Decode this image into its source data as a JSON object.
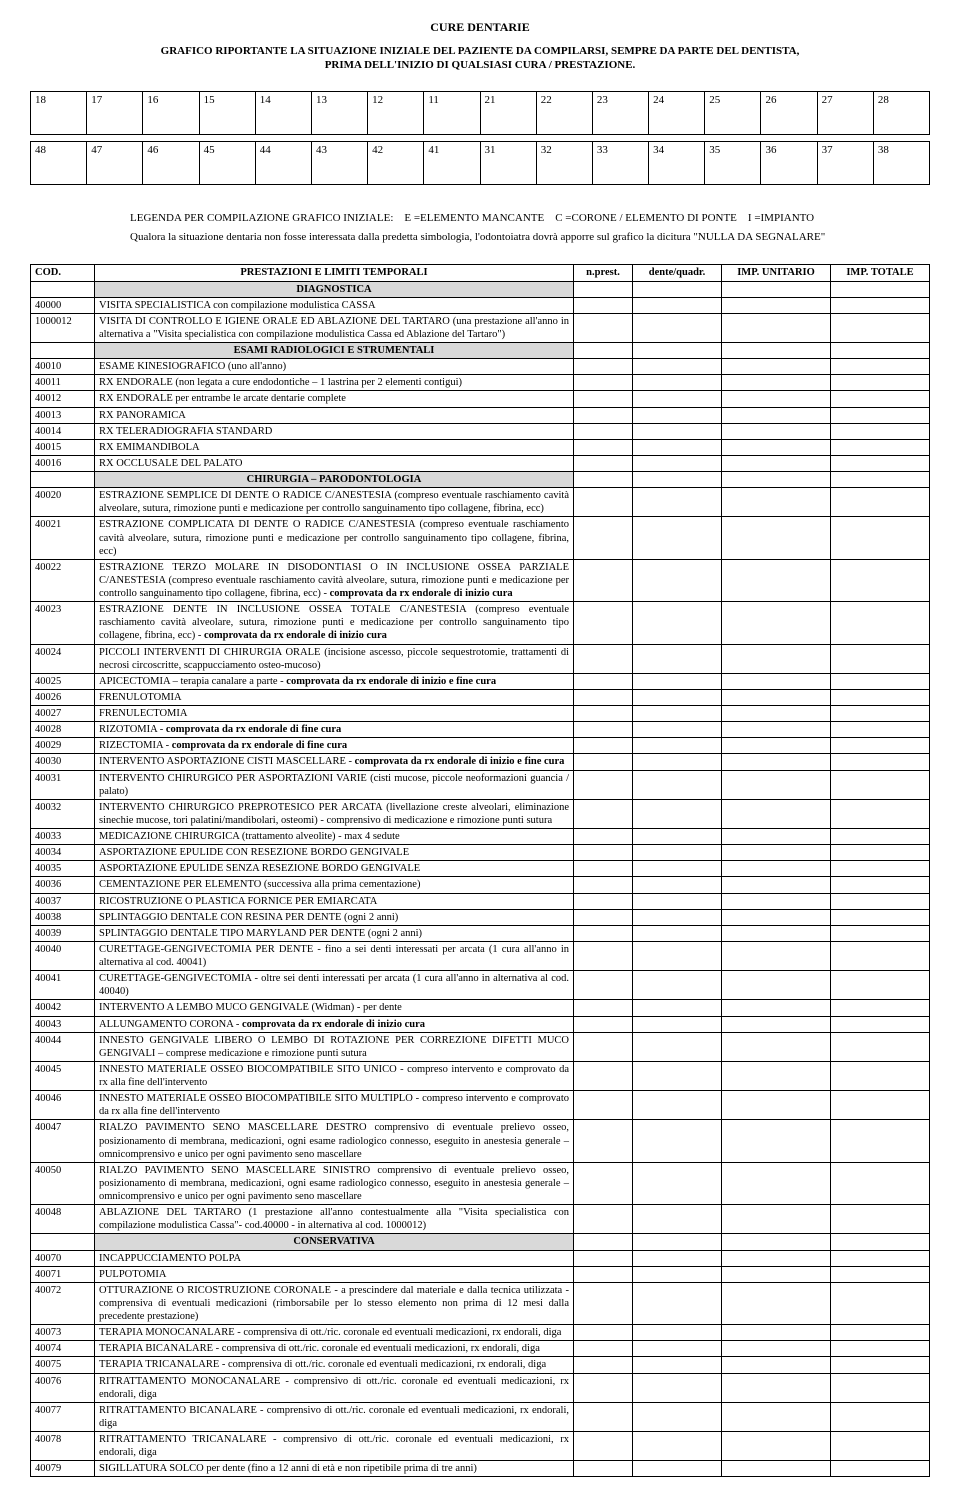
{
  "titles": {
    "t1": "CURE DENTARIE",
    "t2": "GRAFICO RIPORTANTE LA SITUAZIONE INIZIALE DEL PAZIENTE DA COMPILARSI, SEMPRE DA PARTE DEL DENTISTA,",
    "t3": "PRIMA DELL'INIZIO DI QUALSIASI CURA / PRESTAZIONE."
  },
  "teeth_rows": [
    [
      "18",
      "17",
      "16",
      "15",
      "14",
      "13",
      "12",
      "11",
      "21",
      "22",
      "23",
      "24",
      "25",
      "26",
      "27",
      "28"
    ],
    [
      "48",
      "47",
      "46",
      "45",
      "44",
      "43",
      "42",
      "41",
      "31",
      "32",
      "33",
      "34",
      "35",
      "36",
      "37",
      "38"
    ]
  ],
  "legend": {
    "line1_prefix": "LEGENDA PER COMPILAZIONE GRAFICO INIZIALE:",
    "line1_e": "E =ELEMENTO MANCANTE",
    "line1_c": "C =CORONE / ELEMENTO DI PONTE",
    "line1_i": "I =IMPIANTO",
    "line2": "Qualora la situazione dentaria non fosse interessata dalla predetta simbologia, l'odontoiatra dovrà apporre sul grafico la dicitura \"NULLA DA SEGNALARE\""
  },
  "headers": {
    "cod": "COD.",
    "desc": "PRESTAZIONI E LIMITI TEMPORALI",
    "c3": "n.prest.",
    "c4": "dente/quadr.",
    "c5": "IMP. UNITARIO",
    "c6": "IMP. TOTALE"
  },
  "rows": [
    {
      "section": "DIAGNOSTICA"
    },
    {
      "cod": "40000",
      "desc": "VISITA SPECIALISTICA con compilazione modulistica CASSA"
    },
    {
      "cod": "1000012",
      "desc": "VISITA DI CONTROLLO E IGIENE ORALE ED ABLAZIONE DEL TARTARO (una prestazione all'anno in alternativa a \"Visita specialistica con compilazione modulistica Cassa ed Ablazione del Tartaro\")"
    },
    {
      "section": "ESAMI RADIOLOGICI E STRUMENTALI"
    },
    {
      "cod": "40010",
      "desc": "ESAME KINESIOGRAFICO (uno all'anno)"
    },
    {
      "cod": "40011",
      "desc": "RX ENDORALE (non legata a cure endodontiche – 1 lastrina per 2 elementi contigui)"
    },
    {
      "cod": "40012",
      "desc": "RX ENDORALE  per entrambe le arcate dentarie complete"
    },
    {
      "cod": "40013",
      "desc": "RX PANORAMICA"
    },
    {
      "cod": "40014",
      "desc": "RX TELERADIOGRAFIA STANDARD"
    },
    {
      "cod": "40015",
      "desc": "RX EMIMANDIBOLA"
    },
    {
      "cod": "40016",
      "desc": "RX OCCLUSALE DEL PALATO"
    },
    {
      "section": "CHIRURGIA – PARODONTOLOGIA"
    },
    {
      "cod": "40020",
      "desc": "ESTRAZIONE SEMPLICE DI DENTE O RADICE C/ANESTESIA (compreso eventuale raschiamento cavità alveolare, sutura, rimozione punti e medicazione per controllo sanguinamento tipo collagene, fibrina, ecc)"
    },
    {
      "cod": "40021",
      "desc": "ESTRAZIONE COMPLICATA DI DENTE O RADICE C/ANESTESIA (compreso eventuale raschiamento cavità alveolare, sutura, rimozione punti e medicazione per controllo sanguinamento tipo collagene, fibrina, ecc)"
    },
    {
      "cod": "40022",
      "desc": "ESTRAZIONE TERZO MOLARE IN DISODONTIASI O IN INCLUSIONE OSSEA PARZIALE C/ANESTESIA (compreso eventuale raschiamento cavità alveolare, sutura, rimozione punti e medicazione per controllo sanguinamento tipo collagene, fibrina, ecc)  - <b>comprovata da rx endorale di inizio cura</b>"
    },
    {
      "cod": "40023",
      "desc": "ESTRAZIONE DENTE IN INCLUSIONE OSSEA TOTALE C/ANESTESIA (compreso eventuale raschiamento cavità alveolare, sutura, rimozione punti e medicazione per controllo sanguinamento tipo collagene, fibrina, ecc) - <b>comprovata da rx endorale di inizio cura</b>"
    },
    {
      "cod": "40024",
      "desc": "PICCOLI INTERVENTI DI CHIRURGIA ORALE   (incisione ascesso, piccole sequestrotomie, trattamenti di necrosi circoscritte, scappucciamento osteo-mucoso)"
    },
    {
      "cod": "40025",
      "desc": "APICECTOMIA –  terapia canalare a parte - <b>comprovata da rx endorale di inizio e  fine cura</b>"
    },
    {
      "cod": "40026",
      "desc": "FRENULOTOMIA"
    },
    {
      "cod": "40027",
      "desc": "FRENULECTOMIA"
    },
    {
      "cod": "40028",
      "desc": "RIZOTOMIA - <b>comprovata da rx endorale di fine cura</b>"
    },
    {
      "cod": "40029",
      "desc": "RIZECTOMIA - <b>comprovata da rx endorale di  fine cura</b>"
    },
    {
      "cod": "40030",
      "desc": "INTERVENTO ASPORTAZIONE CISTI MASCELLARE - <b>comprovata da rx endorale di inizio e  fine cura</b>"
    },
    {
      "cod": "40031",
      "desc": "INTERVENTO CHIRURGICO PER ASPORTAZIONI VARIE (cisti mucose, piccole neoformazioni guancia / palato)"
    },
    {
      "cod": "40032",
      "desc": "INTERVENTO CHIRURGICO PREPROTESICO PER ARCATA (livellazione creste alveolari, eliminazione sinechie mucose, tori palatini/mandibolari, osteomi) - comprensivo di medicazione e rimozione punti sutura"
    },
    {
      "cod": "40033",
      "desc": "MEDICAZIONE CHIRURGICA (trattamento alveolite) - max 4 sedute"
    },
    {
      "cod": "40034",
      "desc": "ASPORTAZIONE EPULIDE CON RESEZIONE BORDO GENGIVALE"
    },
    {
      "cod": "40035",
      "desc": "ASPORTAZIONE EPULIDE SENZA RESEZIONE BORDO GENGIVALE"
    },
    {
      "cod": "40036",
      "desc": "CEMENTAZIONE PER ELEMENTO (successiva alla prima cementazione)"
    },
    {
      "cod": "40037",
      "desc": "RICOSTRUZIONE O PLASTICA FORNICE PER EMIARCATA"
    },
    {
      "cod": "40038",
      "desc": "SPLINTAGGIO DENTALE CON RESINA PER DENTE (ogni 2 anni)"
    },
    {
      "cod": "40039",
      "desc": "SPLINTAGGIO DENTALE TIPO MARYLAND PER DENTE (ogni 2 anni)"
    },
    {
      "cod": "40040",
      "desc": "CURETTAGE-GENGIVECTOMIA PER DENTE - fino a sei denti interessati per arcata (1 cura all'anno in alternativa al cod. 40041)"
    },
    {
      "cod": "40041",
      "desc": "CURETTAGE-GENGIVECTOMIA - oltre sei denti interessati per arcata (1 cura all'anno in alternativa al cod. 40040)"
    },
    {
      "cod": "40042",
      "desc": "INTERVENTO A LEMBO MUCO GENGIVALE (Widman) - per dente"
    },
    {
      "cod": "40043",
      "desc": "ALLUNGAMENTO CORONA - <b>comprovata da rx endorale di inizio cura</b>"
    },
    {
      "cod": "40044",
      "desc": "INNESTO GENGIVALE LIBERO O LEMBO DI ROTAZIONE PER CORREZIONE DIFETTI MUCO GENGIVALI – comprese medicazione e rimozione punti sutura"
    },
    {
      "cod": "40045",
      "desc": "INNESTO MATERIALE OSSEO BIOCOMPATIBILE SITO UNICO - compreso intervento e comprovato da rx alla fine dell'intervento"
    },
    {
      "cod": "40046",
      "desc": "INNESTO MATERIALE OSSEO BIOCOMPATIBILE SITO MULTIPLO - compreso intervento e comprovato da rx alla fine dell'intervento"
    },
    {
      "cod": "40047",
      "desc": "RIALZO PAVIMENTO SENO MASCELLARE DESTRO comprensivo di eventuale prelievo osseo, posizionamento di membrana, medicazioni, ogni esame radiologico connesso, eseguito in anestesia generale – omnicomprensivo e unico per ogni pavimento seno mascellare"
    },
    {
      "cod": "40050",
      "desc": "RIALZO PAVIMENTO SENO MASCELLARE SINISTRO comprensivo di eventuale prelievo osseo, posizionamento di membrana, medicazioni, ogni esame radiologico connesso, eseguito in anestesia generale – omnicomprensivo e unico per ogni pavimento seno mascellare"
    },
    {
      "cod": "40048",
      "desc": "ABLAZIONE DEL TARTARO   (1 prestazione all'anno   contestualmente alla \"Visita specialistica con compilazione modulistica Cassa\"- cod.40000 - in alternativa al cod. 1000012)"
    },
    {
      "section": "CONSERVATIVA"
    },
    {
      "cod": "40070",
      "desc": "INCAPPUCCIAMENTO POLPA"
    },
    {
      "cod": "40071",
      "desc": "PULPOTOMIA"
    },
    {
      "cod": "40072",
      "desc": "OTTURAZIONE O RICOSTRUZIONE  CORONALE - a prescindere dal materiale e dalla tecnica utilizzata - comprensiva di eventuali medicazioni (rimborsabile per lo stesso elemento non prima di 12 mesi dalla precedente prestazione)"
    },
    {
      "cod": "40073",
      "desc": "TERAPIA MONOCANALARE - comprensiva di ott./ric. coronale ed eventuali medicazioni, rx endorali, diga"
    },
    {
      "cod": "40074",
      "desc": "TERAPIA BICANALARE - comprensiva di ott./ric. coronale ed eventuali medicazioni, rx endorali, diga"
    },
    {
      "cod": "40075",
      "desc": "TERAPIA TRICANALARE - comprensiva di ott./ric. coronale ed eventuali medicazioni, rx endorali, diga"
    },
    {
      "cod": "40076",
      "desc": "RITRATTAMENTO MONOCANALARE - comprensivo di ott./ric. coronale ed eventuali medicazioni, rx endorali, diga"
    },
    {
      "cod": "40077",
      "desc": "RITRATTAMENTO BICANALARE - comprensivo di ott./ric. coronale ed eventuali medicazioni, rx endorali, diga"
    },
    {
      "cod": "40078",
      "desc": "RITRATTAMENTO TRICANALARE - comprensivo di ott./ric. coronale ed eventuali medicazioni, rx endorali, diga"
    },
    {
      "cod": "40079",
      "desc": "SIGILLATURA SOLCO per dente (fino a 12 anni di età e non ripetibile prima di tre anni)"
    }
  ]
}
